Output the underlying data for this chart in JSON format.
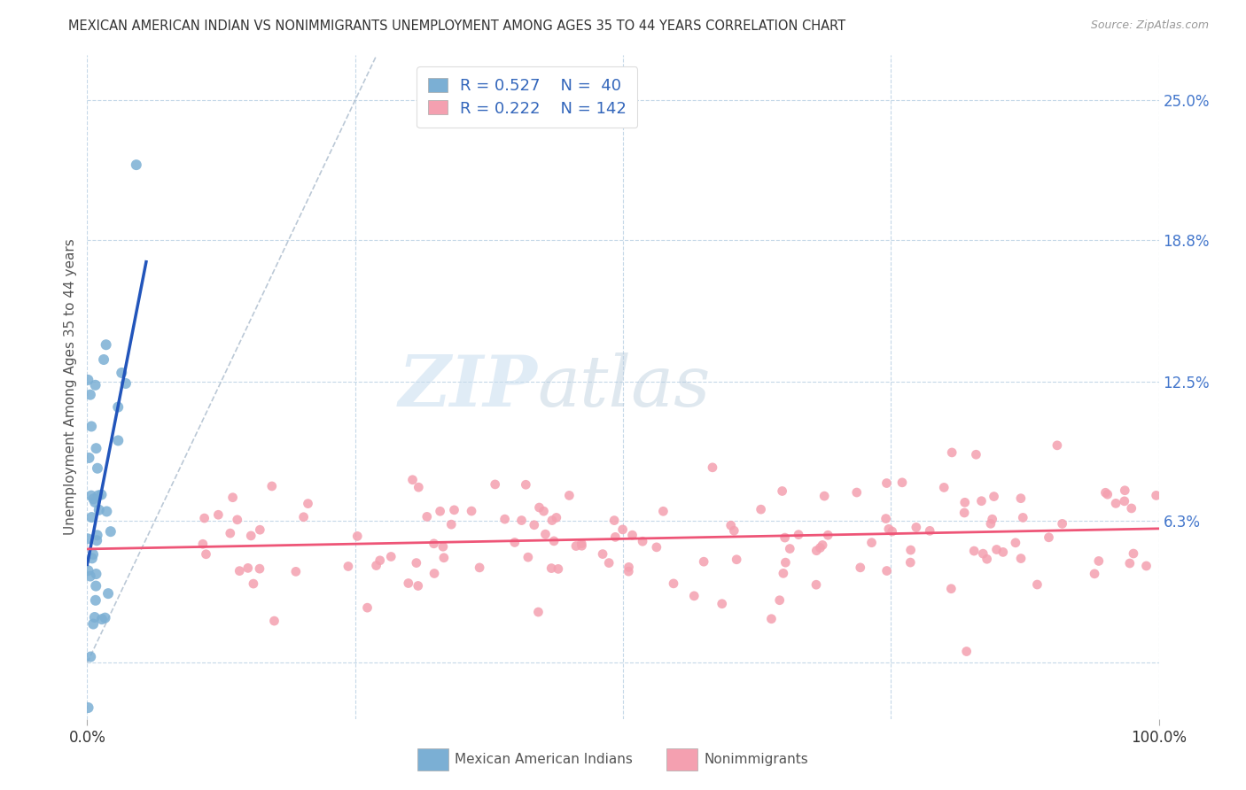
{
  "title": "MEXICAN AMERICAN INDIAN VS NONIMMIGRANTS UNEMPLOYMENT AMONG AGES 35 TO 44 YEARS CORRELATION CHART",
  "source": "Source: ZipAtlas.com",
  "ylabel": "Unemployment Among Ages 35 to 44 years",
  "legend_r1": "R = 0.527",
  "legend_n1": "N =  40",
  "legend_r2": "R = 0.222",
  "legend_n2": "N = 142",
  "color_blue": "#7BAFD4",
  "color_pink": "#F4A0B0",
  "color_trend_blue": "#2255BB",
  "color_trend_pink": "#EE5577",
  "color_diagonal": "#AABBCC",
  "watermark_zip": "ZIP",
  "watermark_atlas": "atlas",
  "ytick_vals": [
    0.0,
    6.3,
    12.5,
    18.8,
    25.0
  ],
  "ytick_labels": [
    "",
    "6.3%",
    "12.5%",
    "18.8%",
    "25.0%"
  ],
  "xlim": [
    0,
    100
  ],
  "ylim": [
    -2.5,
    27
  ],
  "ymin_data": -2.5,
  "ymax_data": 27
}
